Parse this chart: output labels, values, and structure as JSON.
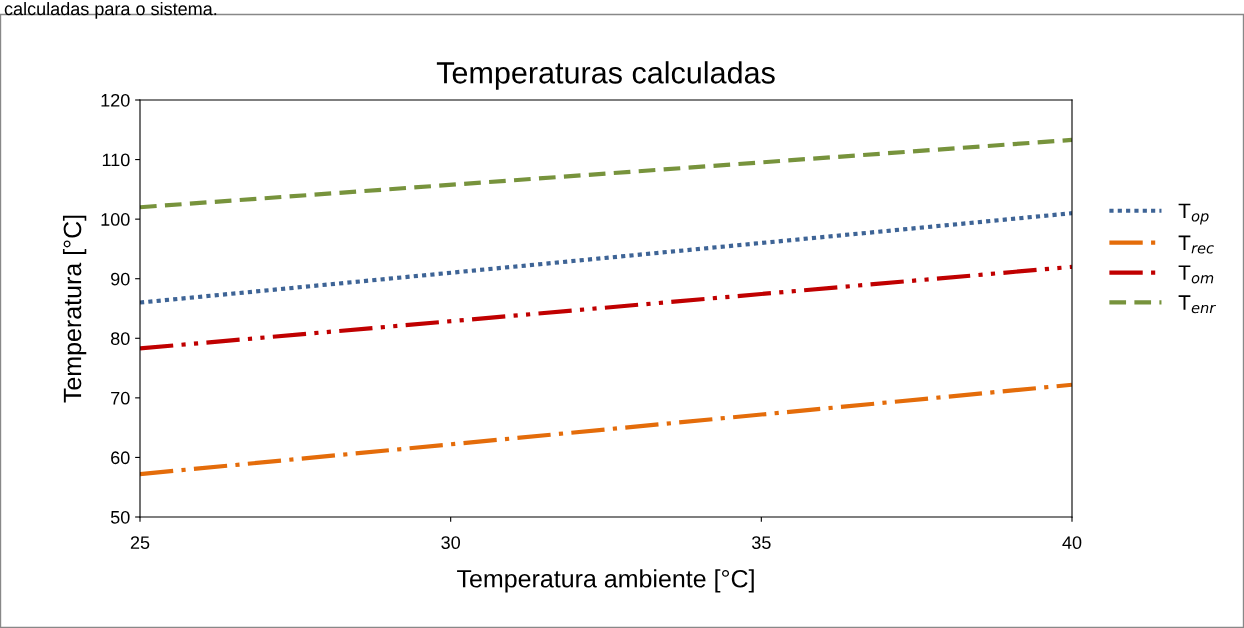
{
  "chart_data": {
    "type": "line",
    "title": "Temperaturas calculadas",
    "xlabel": "Temperatura ambiente [°C]",
    "ylabel": "Temperatura [°C]",
    "annotations": [
      "calculadas para o sistema."
    ],
    "x": [
      25,
      40
    ],
    "series": [
      {
        "name": "T$_{op}$",
        "color": "#3e6496",
        "values": [
          86,
          101
        ],
        "line_style": "dotted"
      },
      {
        "name": "T$_{rec}$",
        "color": "#e46c0a",
        "values": [
          57.2,
          72.2
        ],
        "line_style": "dashdot"
      },
      {
        "name": "T$_{om}$",
        "color": "#c00000",
        "values": [
          78.3,
          92
        ],
        "line_style": "dashdotdot"
      },
      {
        "name": "T$_{enr}$",
        "color": "#77933c",
        "values": [
          102,
          113.3
        ],
        "line_style": "dashed"
      }
    ],
    "xlim": [
      25,
      40
    ],
    "xticks": [
      25,
      30,
      35,
      40
    ],
    "ylim": [
      50,
      120
    ],
    "yticks": [
      50,
      60,
      70,
      80,
      90,
      100,
      110,
      120
    ],
    "grid": false,
    "legend": "right"
  }
}
